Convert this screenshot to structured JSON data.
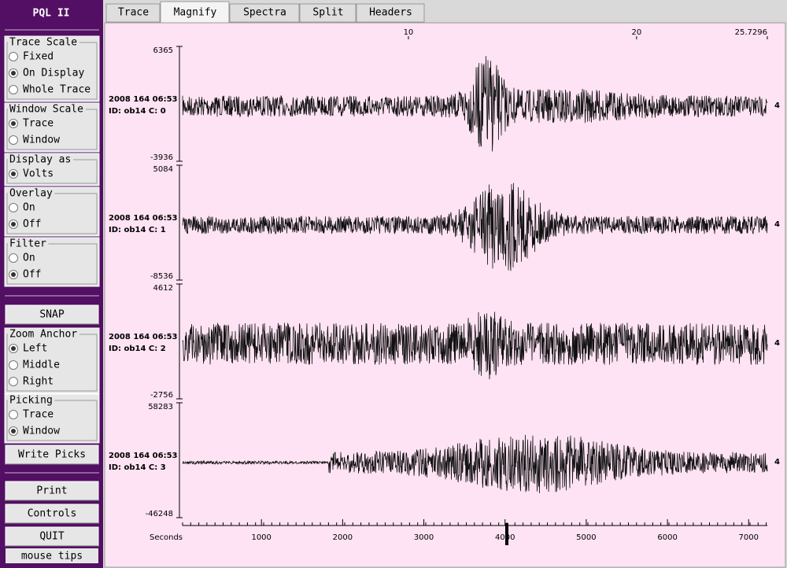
{
  "sidebar": {
    "title": "PQL II",
    "groups": [
      {
        "label": "Trace Scale",
        "options": [
          "Fixed",
          "On Display",
          "Whole Trace"
        ],
        "selected": 1
      },
      {
        "label": "Window Scale",
        "options": [
          "Trace",
          "Window"
        ],
        "selected": 0
      },
      {
        "label": "Display as",
        "options": [
          "Volts"
        ],
        "selected": 0
      },
      {
        "label": "Overlay",
        "options": [
          "On",
          "Off"
        ],
        "selected": 1
      },
      {
        "label": "Filter",
        "options": [
          "On",
          "Off"
        ],
        "selected": 1
      },
      {
        "label": "Zoom Anchor",
        "options": [
          "Left",
          "Middle",
          "Right"
        ],
        "selected": 0
      },
      {
        "label": "Picking",
        "options": [
          "Trace",
          "Window"
        ],
        "selected": 1
      }
    ],
    "buttons": [
      "SNAP",
      "Write Picks",
      "Print",
      "Controls",
      "QUIT"
    ],
    "footer": "mouse tips"
  },
  "tabs": {
    "items": [
      "Trace",
      "Magnify",
      "Spectra",
      "Split",
      "Headers"
    ],
    "selected": 1
  },
  "plot": {
    "top_axis": {
      "xlim": [
        0,
        25.7296
      ],
      "xticks": [
        10,
        20,
        25.7296
      ]
    },
    "bottom_axis": {
      "label": "Seconds",
      "xlim": [
        0,
        7230
      ],
      "xticks": [
        1000,
        2000,
        3000,
        4000,
        5000,
        6000,
        7000
      ]
    },
    "traces": [
      {
        "date": "2008 164 06:53",
        "id": "ID: ob14 C: 0",
        "max": 6365,
        "min": -3936,
        "flag": 4
      },
      {
        "date": "2008 164 06:53",
        "id": "ID: ob14 C: 1",
        "max": 5084,
        "min": -8536,
        "flag": 4
      },
      {
        "date": "2008 164 06:53",
        "id": "ID: ob14 C: 2",
        "max": 4612,
        "min": -2756,
        "flag": 4
      },
      {
        "date": "2008 164 06:53",
        "id": "ID: ob14 C: 3",
        "max": 58283,
        "min": -46248,
        "flag": 4
      }
    ]
  }
}
